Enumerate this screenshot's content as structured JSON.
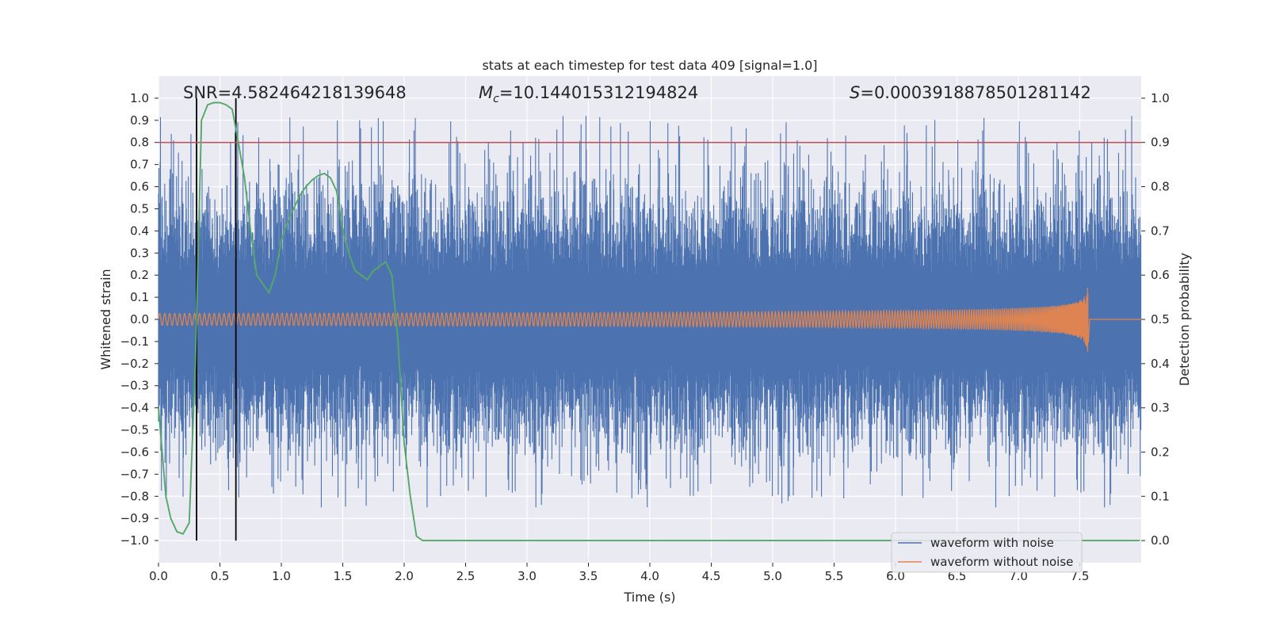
{
  "chart_data": {
    "type": "line",
    "title": "stats at each timestep for test data 409 [signal=1.0]",
    "xlabel": "Time (s)",
    "ylabel_left": "Whitened strain",
    "ylabel_right": "Detection probability",
    "xlim": [
      0.0,
      8.0
    ],
    "ylim_left": [
      -1.1,
      1.1
    ],
    "ylim_right": [
      -0.05,
      1.05
    ],
    "xticks": [
      "0.0",
      "0.5",
      "1.0",
      "1.5",
      "2.0",
      "2.5",
      "3.0",
      "3.5",
      "4.0",
      "4.5",
      "5.0",
      "5.5",
      "6.0",
      "6.5",
      "7.0",
      "7.5"
    ],
    "yticks_left": [
      "1.0",
      "0.9",
      "0.8",
      "0.7",
      "0.6",
      "0.5",
      "0.4",
      "0.3",
      "0.2",
      "0.1",
      "0.0",
      "−0.1",
      "−0.2",
      "−0.3",
      "−0.4",
      "−0.5",
      "−0.6",
      "−0.7",
      "−0.8",
      "−0.9",
      "−1.0"
    ],
    "yticks_right": [
      "1.0",
      "0.9",
      "0.8",
      "0.7",
      "0.6",
      "0.5",
      "0.4",
      "0.3",
      "0.2",
      "0.1",
      "0.0"
    ],
    "grid": true,
    "annotations": {
      "snr": "SNR=4.582464218139648",
      "mc_symbol": "M",
      "mc_sub": "c",
      "mc_value": "=10.144015312194824",
      "s_symbol": "S",
      "s_value": "=0.0003918878501281142"
    },
    "threshold": {
      "axis": "right",
      "value": 0.9,
      "color": "#c44e52"
    },
    "vertical_lines": [
      0.31,
      0.63
    ],
    "legend": {
      "position": "lower-right",
      "entries": [
        {
          "label": "waveform with noise",
          "color": "#4c72b0"
        },
        {
          "label": "waveform without noise",
          "color": "#dd8452"
        }
      ]
    },
    "series": [
      {
        "name": "waveform with noise",
        "axis": "left",
        "color": "#4c72b0",
        "kind": "noise",
        "typical_upper": 0.4,
        "typical_lower": -0.4,
        "peak_upper": 0.92,
        "peak_lower": -0.85
      },
      {
        "name": "waveform without noise",
        "axis": "left",
        "color": "#dd8452",
        "kind": "chirp",
        "t_merger": 7.57,
        "max_amplitude": 0.18,
        "min_amplitude": -0.16
      },
      {
        "name": "detection probability",
        "axis": "right",
        "color": "#55a868",
        "x": [
          0.0,
          0.03,
          0.06,
          0.1,
          0.15,
          0.2,
          0.25,
          0.3,
          0.35,
          0.4,
          0.45,
          0.5,
          0.55,
          0.6,
          0.65,
          0.7,
          0.75,
          0.8,
          0.85,
          0.9,
          0.95,
          1.0,
          1.05,
          1.1,
          1.15,
          1.2,
          1.25,
          1.3,
          1.35,
          1.4,
          1.45,
          1.5,
          1.55,
          1.6,
          1.65,
          1.7,
          1.75,
          1.8,
          1.85,
          1.9,
          1.95,
          2.0,
          2.05,
          2.1,
          2.15,
          2.2,
          2.5,
          3.0,
          4.0,
          5.0,
          6.0,
          7.0,
          7.99
        ],
        "values": [
          0.3,
          0.2,
          0.1,
          0.05,
          0.02,
          0.015,
          0.04,
          0.4,
          0.95,
          0.985,
          0.99,
          0.99,
          0.985,
          0.975,
          0.9,
          0.82,
          0.7,
          0.6,
          0.58,
          0.56,
          0.6,
          0.68,
          0.72,
          0.75,
          0.78,
          0.8,
          0.815,
          0.825,
          0.83,
          0.82,
          0.79,
          0.7,
          0.65,
          0.61,
          0.6,
          0.59,
          0.61,
          0.62,
          0.63,
          0.6,
          0.45,
          0.22,
          0.1,
          0.01,
          0.0,
          0.0,
          0.0,
          0.0,
          0.0,
          0.0,
          0.0,
          0.0,
          0.0
        ]
      }
    ]
  }
}
